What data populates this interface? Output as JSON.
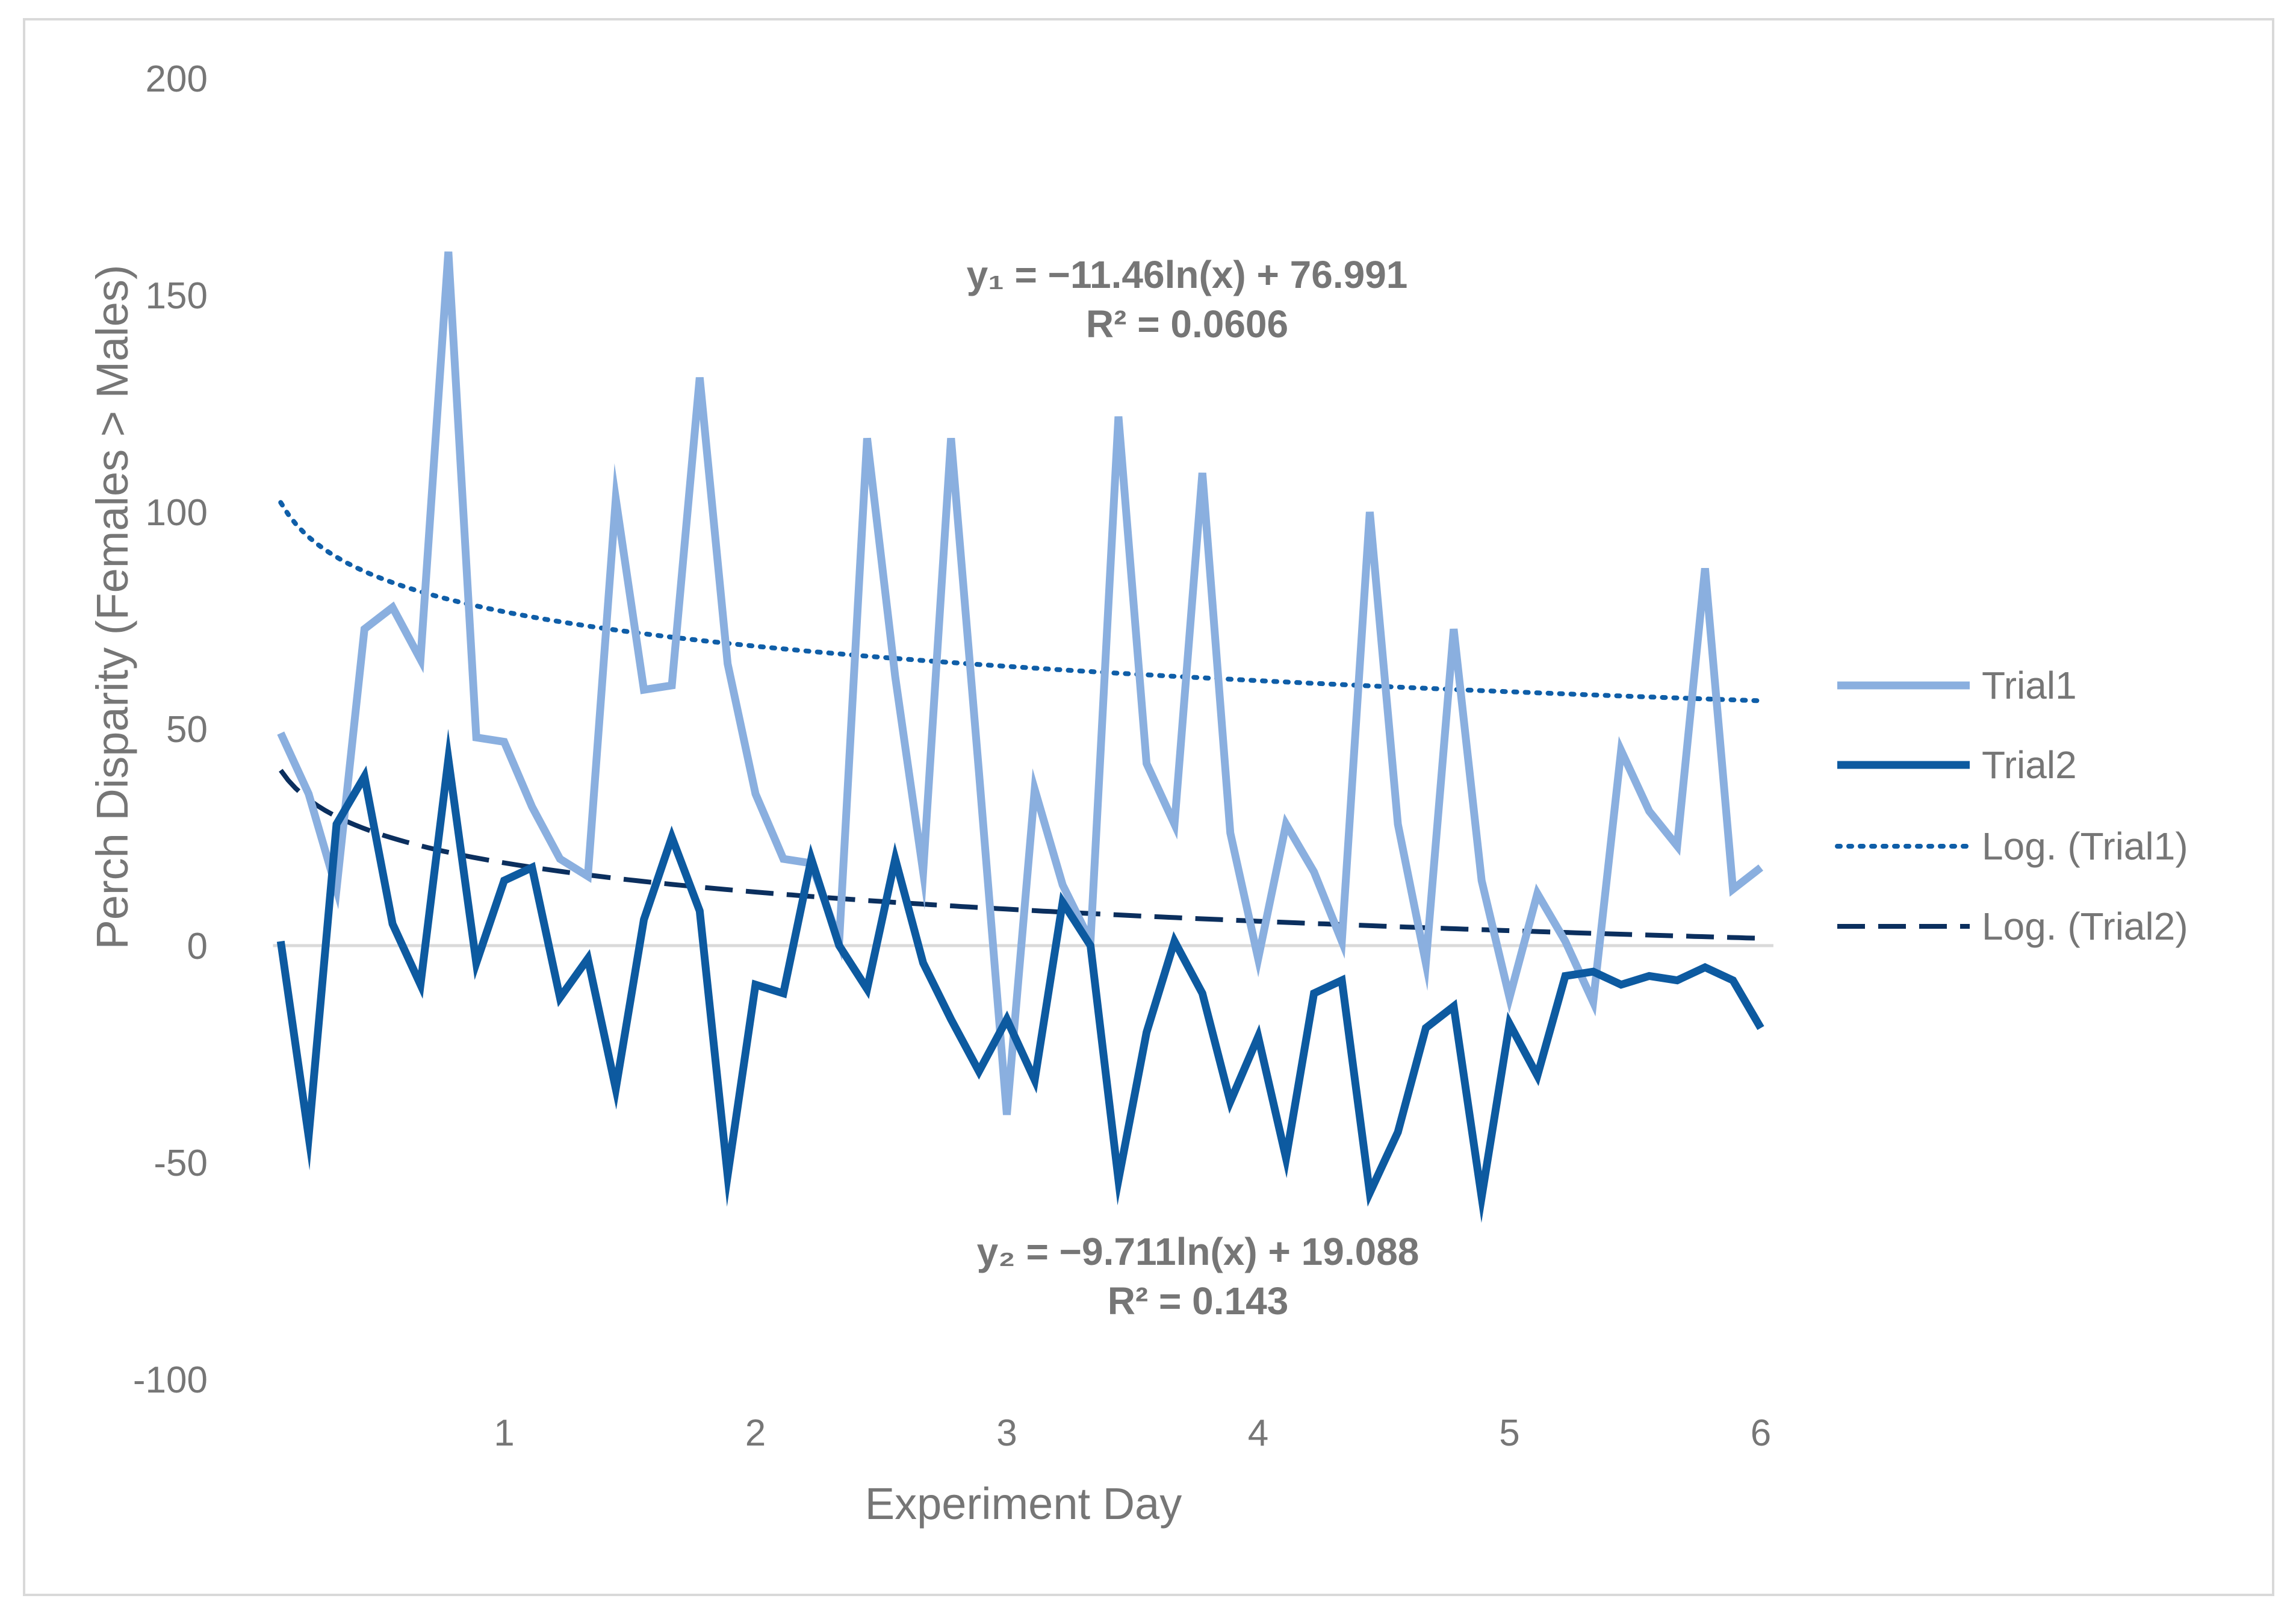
{
  "chart_data": {
    "type": "line",
    "title": "",
    "xlabel": "Experiment Day",
    "ylabel": "Perch Disparity (Females > Males)",
    "xlim": [
      0,
      6
    ],
    "ylim": [
      -100,
      200
    ],
    "x_ticks": [
      "1",
      "2",
      "3",
      "4",
      "5",
      "6"
    ],
    "y_ticks": [
      "200",
      "150",
      "100",
      "50",
      "0",
      "-50",
      "-100"
    ],
    "grid": false,
    "legend_position": "right",
    "x": [
      0.111,
      0.222,
      0.333,
      0.444,
      0.556,
      0.667,
      0.778,
      0.889,
      1.0,
      1.111,
      1.222,
      1.333,
      1.444,
      1.556,
      1.667,
      1.778,
      1.889,
      2.0,
      2.111,
      2.222,
      2.333,
      2.444,
      2.556,
      2.667,
      2.778,
      2.889,
      3.0,
      3.111,
      3.222,
      3.333,
      3.444,
      3.556,
      3.667,
      3.778,
      3.889,
      4.0,
      4.111,
      4.222,
      4.333,
      4.444,
      4.556,
      4.667,
      4.778,
      4.889,
      5.0,
      5.111,
      5.222,
      5.333,
      5.444,
      5.556,
      5.667,
      5.778,
      5.889,
      6.0
    ],
    "series": [
      {
        "name": "Trial1",
        "color": "#8aafdf",
        "style": "solid",
        "values": [
          49,
          35,
          13,
          73,
          78,
          66,
          160,
          48,
          47,
          32,
          20,
          16,
          103,
          59,
          60,
          131,
          65,
          35,
          20,
          19,
          1,
          117,
          62,
          17,
          117,
          40,
          -39,
          36,
          14,
          1,
          122,
          42,
          28,
          109,
          26,
          -3,
          28,
          17,
          1,
          100,
          28,
          -4,
          73,
          15,
          -12,
          12,
          1,
          -13,
          45,
          31,
          23,
          87,
          13,
          18
        ]
      },
      {
        "name": "Trial2",
        "color": "#0d5aa0",
        "style": "solid",
        "values": [
          1,
          -44,
          28,
          39,
          5,
          -9,
          43,
          -4,
          15,
          18,
          -12,
          -3,
          -33,
          6,
          25,
          8,
          -53,
          -9,
          -11,
          20,
          0,
          -10,
          20,
          -4,
          -17,
          -29,
          -17,
          -31,
          10,
          0,
          -54,
          -20,
          1,
          -11,
          -36,
          -21,
          -49,
          -11,
          -8,
          -57,
          -43,
          -19,
          -14,
          -58,
          -18,
          -30,
          -7,
          -6,
          -9,
          -7,
          -8,
          -5,
          -8,
          -19
        ]
      },
      {
        "name": "Log. (Trial1)",
        "color": "#0f5ea8",
        "style": "dotted",
        "trend": {
          "a": -11.46,
          "b": 76.991
        }
      },
      {
        "name": "Log. (Trial2)",
        "color": "#0b2f5e",
        "style": "dashed",
        "trend": {
          "a": -9.711,
          "b": 19.088
        }
      }
    ],
    "annotations": [
      {
        "id": "eq1",
        "text": "y₁ = −11.46ln(x) + 76.991"
      },
      {
        "id": "r1",
        "text": "R² = 0.0606"
      },
      {
        "id": "eq2",
        "text": "y₂ = −9.711ln(x) + 19.088"
      },
      {
        "id": "r2",
        "text": "R² = 0.143"
      }
    ]
  }
}
